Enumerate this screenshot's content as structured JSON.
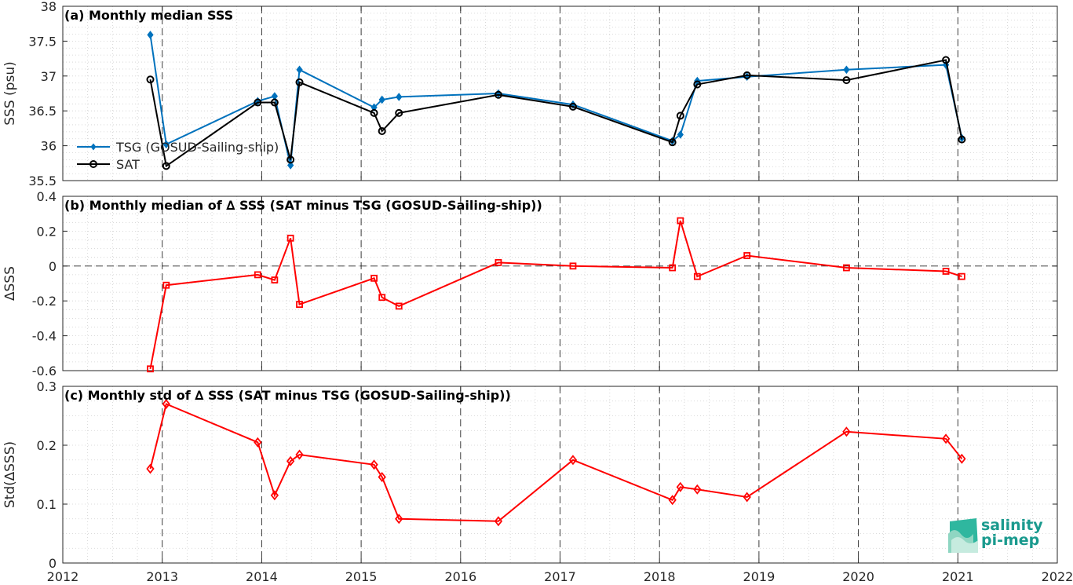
{
  "chart_data": [
    {
      "type": "line",
      "title": "(a) Monthly median SSS",
      "ylabel": "SSS (psu)",
      "xlim": [
        2012,
        2022
      ],
      "ylim": [
        35.5,
        38
      ],
      "yticks": [
        "35.5",
        "36",
        "36.5",
        "37",
        "37.5",
        "38"
      ],
      "grid": true,
      "legend_position": "left-middle",
      "series": [
        {
          "name": "TSG (GOSUD-Sailing-ship)",
          "color": "#0072bd",
          "marker": "filled-diamond",
          "x": [
            2012.88,
            2013.04,
            2013.96,
            2014.13,
            2014.29,
            2014.38,
            2015.13,
            2015.21,
            2015.38,
            2016.38,
            2017.13,
            2018.13,
            2018.21,
            2018.38,
            2018.88,
            2019.88,
            2020.88,
            2021.04
          ],
          "y": [
            37.59,
            36.02,
            36.64,
            36.71,
            35.72,
            37.09,
            36.55,
            36.66,
            36.7,
            36.75,
            36.59,
            36.07,
            36.16,
            36.93,
            36.99,
            37.09,
            37.16,
            36.11
          ]
        },
        {
          "name": "SAT",
          "color": "#000000",
          "marker": "open-circle",
          "x": [
            2012.88,
            2013.04,
            2013.96,
            2014.13,
            2014.29,
            2014.38,
            2015.13,
            2015.21,
            2015.38,
            2016.38,
            2017.13,
            2018.13,
            2018.21,
            2018.38,
            2018.88,
            2019.88,
            2020.88,
            2021.04
          ],
          "y": [
            36.95,
            35.71,
            36.62,
            36.62,
            35.8,
            36.91,
            36.47,
            36.21,
            36.47,
            36.73,
            36.56,
            36.05,
            36.43,
            36.88,
            37.01,
            36.94,
            37.23,
            36.09
          ]
        }
      ]
    },
    {
      "type": "line",
      "title": "(b) Monthly median of ∆ SSS (SAT minus TSG (GOSUD-Sailing-ship))",
      "ylabel": "∆SSS",
      "xlim": [
        2012,
        2022
      ],
      "ylim": [
        -0.6,
        0.4
      ],
      "yticks": [
        "-0.6",
        "-0.4",
        "-0.2",
        "0",
        "0.2",
        "0.4"
      ],
      "grid": true,
      "zero_line": true,
      "series": [
        {
          "name": "",
          "color": "#ff0000",
          "marker": "open-square",
          "x": [
            2012.88,
            2013.04,
            2013.96,
            2014.13,
            2014.29,
            2014.38,
            2015.13,
            2015.21,
            2015.38,
            2016.38,
            2017.13,
            2018.13,
            2018.21,
            2018.38,
            2018.88,
            2019.88,
            2020.88,
            2021.04
          ],
          "y": [
            -0.59,
            -0.11,
            -0.05,
            -0.08,
            0.16,
            -0.22,
            -0.07,
            -0.18,
            -0.23,
            0.02,
            0.0,
            -0.01,
            0.26,
            -0.06,
            0.06,
            -0.01,
            -0.03,
            -0.06
          ]
        }
      ]
    },
    {
      "type": "line",
      "title": "(c) Monthly std of ∆ SSS (SAT minus TSG (GOSUD-Sailing-ship))",
      "ylabel": "Std(∆SSS)",
      "xlim": [
        2012,
        2022
      ],
      "ylim": [
        0,
        0.3
      ],
      "yticks": [
        "0",
        "0.1",
        "0.2",
        "0.3"
      ],
      "xticks": [
        "2012",
        "2013",
        "2014",
        "2015",
        "2016",
        "2017",
        "2018",
        "2019",
        "2020",
        "2021",
        "2022"
      ],
      "grid": true,
      "series": [
        {
          "name": "",
          "color": "#ff0000",
          "marker": "open-diamond",
          "x": [
            2012.88,
            2013.04,
            2013.96,
            2014.13,
            2014.29,
            2014.38,
            2015.13,
            2015.21,
            2015.38,
            2016.38,
            2017.13,
            2018.13,
            2018.21,
            2018.38,
            2018.88,
            2019.88,
            2020.88,
            2021.04
          ],
          "y": [
            0.16,
            0.27,
            0.205,
            0.115,
            0.173,
            0.184,
            0.167,
            0.146,
            0.075,
            0.071,
            0.175,
            0.107,
            0.129,
            0.125,
            0.112,
            0.223,
            0.211,
            0.177
          ]
        }
      ]
    }
  ],
  "logo": {
    "line1": "salinity",
    "line2": "pi-mep"
  }
}
